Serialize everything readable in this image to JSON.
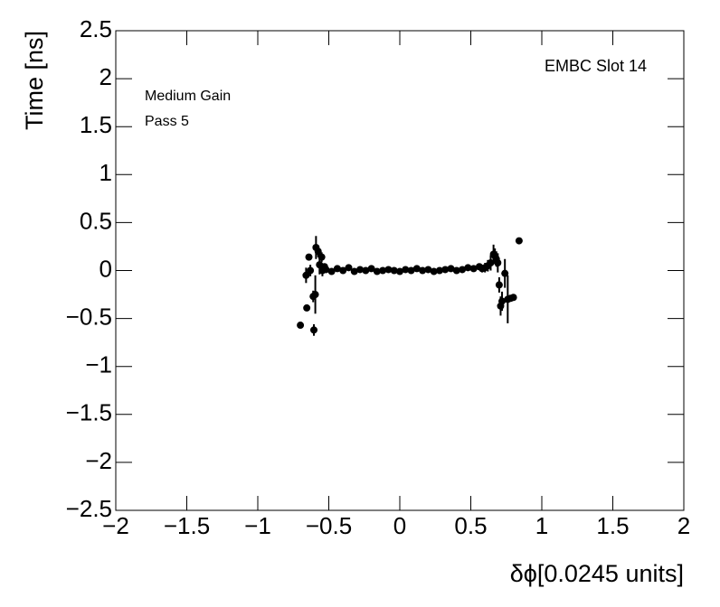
{
  "chart_data": {
    "type": "scatter",
    "x_label": "δϕ[0.0245 units]",
    "y_label": "Time [ns]",
    "annotations": [
      "EMBC Slot 14",
      "Medium Gain",
      "Pass 5"
    ],
    "xlim": [
      -2,
      2
    ],
    "ylim": [
      -2.5,
      2.5
    ],
    "xticks": [
      {
        "value": -2,
        "label": "−2"
      },
      {
        "value": -1.5,
        "label": "−1.5"
      },
      {
        "value": -1,
        "label": "−1"
      },
      {
        "value": -0.5,
        "label": "−0.5"
      },
      0,
      0.5,
      1,
      1.5,
      2
    ],
    "yticks": [
      {
        "value": -2.5,
        "label": "−2.5"
      },
      {
        "value": -2,
        "label": "−2"
      },
      {
        "value": -1.5,
        "label": "−1.5"
      },
      {
        "value": -1,
        "label": "−1"
      },
      {
        "value": -0.5,
        "label": "−0.5"
      },
      0,
      0.5,
      1,
      1.5,
      2,
      2.5
    ],
    "color": "#000000",
    "x": [
      -0.7,
      -0.66,
      -0.655,
      -0.64,
      -0.63,
      -0.61,
      -0.605,
      -0.595,
      -0.59,
      -0.575,
      -0.565,
      -0.55,
      -0.545,
      -0.53,
      -0.52,
      -0.48,
      -0.44,
      -0.4,
      -0.36,
      -0.32,
      -0.28,
      -0.24,
      -0.2,
      -0.16,
      -0.12,
      -0.08,
      -0.04,
      0,
      0.04,
      0.08,
      0.12,
      0.16,
      0.2,
      0.24,
      0.28,
      0.32,
      0.36,
      0.4,
      0.44,
      0.48,
      0.52,
      0.56,
      0.58,
      0.6,
      0.62,
      0.64,
      0.66,
      0.67,
      0.68,
      0.69,
      0.7,
      0.71,
      0.72,
      0.74,
      0.76,
      0.78,
      0.8,
      0.84
    ],
    "values": [
      -0.57,
      -0.05,
      -0.39,
      0.14,
      0.0,
      -0.27,
      -0.62,
      -0.25,
      0.24,
      0.2,
      0.06,
      0.14,
      0.0,
      0.04,
      0.01,
      -0.01,
      0.02,
      0,
      0.03,
      -0.01,
      0.01,
      0,
      0.02,
      -0.01,
      0,
      0.01,
      0,
      -0.01,
      0.01,
      0,
      0.02,
      0,
      0.01,
      -0.01,
      0,
      0.01,
      0.02,
      0,
      0.01,
      0.03,
      0.02,
      0.04,
      0.02,
      0.03,
      0.05,
      0.08,
      0.17,
      0.15,
      0.12,
      0.08,
      -0.15,
      -0.37,
      -0.32,
      -0.03,
      -0.3,
      -0.29,
      -0.28,
      0.31
    ],
    "errors": [
      0,
      0.08,
      0,
      0,
      0.06,
      0.06,
      0.06,
      0.2,
      0.12,
      0.06,
      0.1,
      0.05,
      0.06,
      0.03,
      0.02,
      0.02,
      0.02,
      0.02,
      0.02,
      0.02,
      0.02,
      0.02,
      0.02,
      0.02,
      0.02,
      0.02,
      0.02,
      0.02,
      0.02,
      0.02,
      0.02,
      0.02,
      0.02,
      0.02,
      0.02,
      0.02,
      0.02,
      0.02,
      0.02,
      0.02,
      0.02,
      0.02,
      0.04,
      0.05,
      0.06,
      0.08,
      0.1,
      0.08,
      0.08,
      0.1,
      0.08,
      0.1,
      0.1,
      0.15,
      0.25,
      0,
      0,
      0
    ]
  }
}
